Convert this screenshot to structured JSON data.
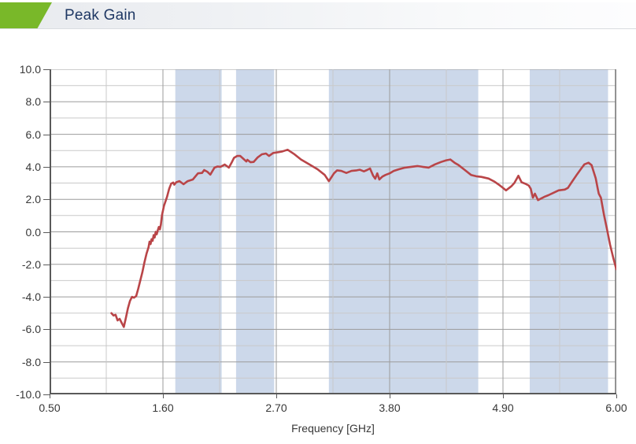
{
  "header": {
    "title": "Peak Gain",
    "accent_color": "#79b829",
    "title_color": "#1f3864"
  },
  "chart_data": {
    "type": "line",
    "title": "Peak Gain",
    "xlabel": "Frequency [GHz]",
    "ylabel": "",
    "xlim": [
      0.5,
      6.0
    ],
    "ylim": [
      -10,
      10
    ],
    "grid": "major-and-minor",
    "legend": "none",
    "x_ticks": [
      "0.50",
      "1.60",
      "2.70",
      "3.80",
      "4.90",
      "6.00"
    ],
    "x_tick_values": [
      0.5,
      1.6,
      2.7,
      3.8,
      4.9,
      6.0
    ],
    "y_ticks": [
      "10.0",
      "8.0",
      "6.0",
      "4.0",
      "2.0",
      "0.0",
      "-2.0",
      "-4.0",
      "-6.0",
      "-8.0",
      "-10.0"
    ],
    "y_tick_values": [
      10,
      8,
      6,
      4,
      2,
      0,
      -2,
      -4,
      -6,
      -8,
      -10
    ],
    "highlight_bands": {
      "color": "#ccd8ea",
      "ranges_ghz": [
        [
          1.72,
          2.17
        ],
        [
          2.31,
          2.68
        ],
        [
          3.21,
          4.66
        ],
        [
          5.16,
          5.92
        ]
      ]
    },
    "colors": {
      "grid_major": "#9b9b9b",
      "grid_minor": "#c9c9c9",
      "axis": "#595959",
      "frame_right": "#7f7f7f",
      "tick_label": "#383838"
    },
    "series": [
      {
        "name": "Peak Gain",
        "color": "#b94548",
        "points": [
          [
            1.1,
            -5.0
          ],
          [
            1.12,
            -5.15
          ],
          [
            1.14,
            -5.1
          ],
          [
            1.16,
            -5.45
          ],
          [
            1.18,
            -5.35
          ],
          [
            1.2,
            -5.6
          ],
          [
            1.22,
            -5.85
          ],
          [
            1.24,
            -5.3
          ],
          [
            1.26,
            -4.7
          ],
          [
            1.28,
            -4.25
          ],
          [
            1.3,
            -4.0
          ],
          [
            1.32,
            -4.05
          ],
          [
            1.34,
            -3.95
          ],
          [
            1.36,
            -3.5
          ],
          [
            1.38,
            -3.0
          ],
          [
            1.4,
            -2.5
          ],
          [
            1.42,
            -1.9
          ],
          [
            1.44,
            -1.35
          ],
          [
            1.46,
            -0.95
          ],
          [
            1.47,
            -0.6
          ],
          [
            1.48,
            -0.75
          ],
          [
            1.49,
            -0.45
          ],
          [
            1.5,
            -0.55
          ],
          [
            1.51,
            -0.2
          ],
          [
            1.52,
            -0.35
          ],
          [
            1.53,
            0.0
          ],
          [
            1.54,
            -0.15
          ],
          [
            1.55,
            0.1
          ],
          [
            1.56,
            0.3
          ],
          [
            1.57,
            0.15
          ],
          [
            1.58,
            0.45
          ],
          [
            1.59,
            1.0
          ],
          [
            1.61,
            1.6
          ],
          [
            1.64,
            2.15
          ],
          [
            1.66,
            2.65
          ],
          [
            1.68,
            2.97
          ],
          [
            1.7,
            3.03
          ],
          [
            1.71,
            2.9
          ],
          [
            1.73,
            3.05
          ],
          [
            1.76,
            3.12
          ],
          [
            1.8,
            2.93
          ],
          [
            1.84,
            3.12
          ],
          [
            1.89,
            3.22
          ],
          [
            1.94,
            3.6
          ],
          [
            1.98,
            3.62
          ],
          [
            2.0,
            3.8
          ],
          [
            2.03,
            3.7
          ],
          [
            2.06,
            3.52
          ],
          [
            2.1,
            3.95
          ],
          [
            2.13,
            4.02
          ],
          [
            2.16,
            4.0
          ],
          [
            2.2,
            4.14
          ],
          [
            2.24,
            3.95
          ],
          [
            2.27,
            4.3
          ],
          [
            2.29,
            4.55
          ],
          [
            2.32,
            4.67
          ],
          [
            2.35,
            4.67
          ],
          [
            2.38,
            4.5
          ],
          [
            2.41,
            4.33
          ],
          [
            2.42,
            4.43
          ],
          [
            2.45,
            4.28
          ],
          [
            2.48,
            4.3
          ],
          [
            2.52,
            4.58
          ],
          [
            2.56,
            4.77
          ],
          [
            2.6,
            4.82
          ],
          [
            2.63,
            4.67
          ],
          [
            2.67,
            4.85
          ],
          [
            2.72,
            4.9
          ],
          [
            2.76,
            4.95
          ],
          [
            2.81,
            5.05
          ],
          [
            2.87,
            4.8
          ],
          [
            2.94,
            4.45
          ],
          [
            3.02,
            4.15
          ],
          [
            3.1,
            3.85
          ],
          [
            3.17,
            3.5
          ],
          [
            3.21,
            3.12
          ],
          [
            3.26,
            3.6
          ],
          [
            3.29,
            3.78
          ],
          [
            3.33,
            3.75
          ],
          [
            3.38,
            3.62
          ],
          [
            3.43,
            3.75
          ],
          [
            3.48,
            3.78
          ],
          [
            3.51,
            3.82
          ],
          [
            3.55,
            3.72
          ],
          [
            3.58,
            3.8
          ],
          [
            3.61,
            3.9
          ],
          [
            3.64,
            3.45
          ],
          [
            3.66,
            3.27
          ],
          [
            3.68,
            3.6
          ],
          [
            3.7,
            3.22
          ],
          [
            3.73,
            3.4
          ],
          [
            3.76,
            3.5
          ],
          [
            3.8,
            3.6
          ],
          [
            3.84,
            3.75
          ],
          [
            3.89,
            3.85
          ],
          [
            3.95,
            3.95
          ],
          [
            4.01,
            4.0
          ],
          [
            4.07,
            4.05
          ],
          [
            4.12,
            4.0
          ],
          [
            4.18,
            3.95
          ],
          [
            4.24,
            4.15
          ],
          [
            4.3,
            4.3
          ],
          [
            4.35,
            4.4
          ],
          [
            4.39,
            4.45
          ],
          [
            4.43,
            4.25
          ],
          [
            4.47,
            4.1
          ],
          [
            4.53,
            3.8
          ],
          [
            4.59,
            3.5
          ],
          [
            4.64,
            3.42
          ],
          [
            4.69,
            3.38
          ],
          [
            4.76,
            3.28
          ],
          [
            4.82,
            3.08
          ],
          [
            4.87,
            2.85
          ],
          [
            4.93,
            2.55
          ],
          [
            4.98,
            2.8
          ],
          [
            5.01,
            3.0
          ],
          [
            5.05,
            3.45
          ],
          [
            5.08,
            3.05
          ],
          [
            5.12,
            2.95
          ],
          [
            5.15,
            2.85
          ],
          [
            5.17,
            2.65
          ],
          [
            5.19,
            2.1
          ],
          [
            5.21,
            2.35
          ],
          [
            5.24,
            1.95
          ],
          [
            5.27,
            2.05
          ],
          [
            5.3,
            2.15
          ],
          [
            5.34,
            2.25
          ],
          [
            5.39,
            2.4
          ],
          [
            5.44,
            2.55
          ],
          [
            5.5,
            2.6
          ],
          [
            5.53,
            2.7
          ],
          [
            5.57,
            3.08
          ],
          [
            5.62,
            3.55
          ],
          [
            5.66,
            3.9
          ],
          [
            5.69,
            4.15
          ],
          [
            5.73,
            4.25
          ],
          [
            5.76,
            4.1
          ],
          [
            5.78,
            3.7
          ],
          [
            5.8,
            3.3
          ],
          [
            5.82,
            2.65
          ],
          [
            5.83,
            2.35
          ],
          [
            5.85,
            2.1
          ],
          [
            5.88,
            1.05
          ],
          [
            5.91,
            0.15
          ],
          [
            5.94,
            -0.8
          ],
          [
            5.97,
            -1.6
          ],
          [
            6.0,
            -2.3
          ]
        ]
      }
    ]
  }
}
